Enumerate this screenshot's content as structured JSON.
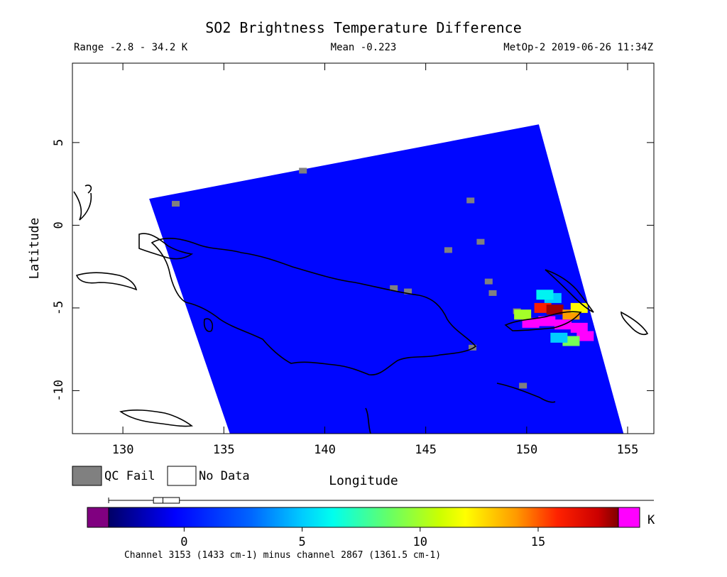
{
  "chart_data": {
    "type": "heatmap",
    "title": "SO2 Brightness Temperature Difference",
    "info": {
      "range": "Range -2.8 - 34.2 K",
      "mean": "Mean -0.223",
      "satellite_time": "MetOp-2 2019-06-26 11:34Z"
    },
    "xlabel": "Longitude",
    "ylabel": "Latitude",
    "xlim": [
      127.5,
      156.3
    ],
    "ylim": [
      -12.6,
      9.8
    ],
    "x_ticks": [
      130,
      135,
      140,
      145,
      150,
      155
    ],
    "y_ticks": [
      5,
      0,
      -5,
      -10
    ],
    "swath_corners": [
      [
        131.3,
        1.6
      ],
      [
        150.6,
        6.1
      ],
      [
        154.8,
        -12.6
      ],
      [
        135.3,
        -12.6
      ]
    ],
    "background_value": -0.2,
    "plume": [
      {
        "lon": 150.2,
        "lat": -5.9,
        "value": 35.0
      },
      {
        "lon": 151.0,
        "lat": -5.8,
        "value": 35.0
      },
      {
        "lon": 151.8,
        "lat": -6.0,
        "value": 35.0
      },
      {
        "lon": 152.6,
        "lat": -6.2,
        "value": 35.0
      },
      {
        "lon": 152.9,
        "lat": -6.7,
        "value": 35.0
      },
      {
        "lon": 150.8,
        "lat": -5.0,
        "value": 16.0
      },
      {
        "lon": 151.4,
        "lat": -5.1,
        "value": 18.0
      },
      {
        "lon": 152.2,
        "lat": -5.4,
        "value": 14.0
      },
      {
        "lon": 152.6,
        "lat": -5.0,
        "value": 12.0
      },
      {
        "lon": 149.8,
        "lat": -5.4,
        "value": 10.0
      },
      {
        "lon": 151.3,
        "lat": -4.4,
        "value": 5.0
      },
      {
        "lon": 150.9,
        "lat": -4.2,
        "value": 6.0
      },
      {
        "lon": 152.2,
        "lat": -7.0,
        "value": 9.0
      },
      {
        "lon": 151.6,
        "lat": -6.8,
        "value": 5.0
      }
    ],
    "qc_fail": [
      {
        "lon": 132.6,
        "lat": 1.3
      },
      {
        "lon": 138.9,
        "lat": 3.3
      },
      {
        "lon": 147.2,
        "lat": 1.5
      },
      {
        "lon": 146.1,
        "lat": -1.5
      },
      {
        "lon": 147.7,
        "lat": -1.0
      },
      {
        "lon": 144.1,
        "lat": -4.0
      },
      {
        "lon": 148.3,
        "lat": -4.1
      },
      {
        "lon": 149.5,
        "lat": -5.2
      },
      {
        "lon": 147.3,
        "lat": -7.4
      },
      {
        "lon": 149.8,
        "lat": -9.7
      },
      {
        "lon": 143.4,
        "lat": -3.8
      },
      {
        "lon": 148.1,
        "lat": -3.4
      }
    ],
    "legend": [
      {
        "label": "QC Fail",
        "color": "#808080"
      },
      {
        "label": "No Data",
        "color": "#ffffff"
      }
    ],
    "colorbar": {
      "ticks": [
        0,
        5,
        10,
        15
      ],
      "range": [
        -3.2,
        18.4
      ],
      "unit": "K",
      "under_color": "#800080",
      "over_color": "#ff00ff",
      "box_whisker": {
        "min": -3.2,
        "q1": -1.3,
        "median": -0.9,
        "q3": -0.2,
        "max": 20.5
      }
    },
    "note": "Channel 3153 (1433 cm-1) minus channel 2867 (1361.5 cm-1)"
  }
}
